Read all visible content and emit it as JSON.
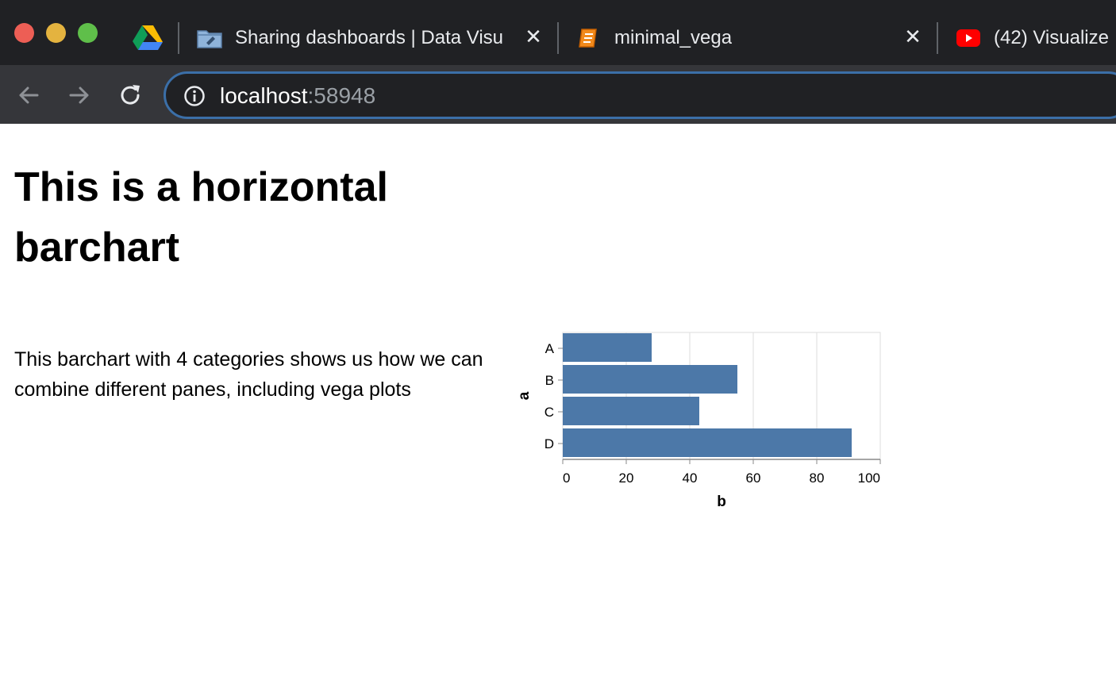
{
  "browser": {
    "tabs": [
      {
        "title": "Sharing dashboards | Data Visu",
        "icon": "folder-icon"
      },
      {
        "title": "minimal_vega",
        "icon": "notebook-icon"
      },
      {
        "title": "(42) Visualize",
        "icon": "youtube-icon"
      }
    ],
    "pinned_tab_icon": "google-drive-icon",
    "address": {
      "host": "localhost",
      "port": ":58948"
    },
    "colors": {
      "chrome_dark": "#202124",
      "toolbar": "#35363a",
      "omnibox_border": "#3b6fa8"
    }
  },
  "page": {
    "title": "This is a horizontal barchart",
    "description": "This barchart with 4 categories shows us how we can combine different panes, including vega plots"
  },
  "chart_data": {
    "type": "bar",
    "orientation": "horizontal",
    "categories": [
      "A",
      "B",
      "C",
      "D"
    ],
    "values": [
      28,
      55,
      43,
      91
    ],
    "xlabel": "b",
    "ylabel": "a",
    "xlim": [
      0,
      100
    ],
    "xticks": [
      0,
      20,
      40,
      60,
      80,
      100
    ],
    "grid": true,
    "bar_color": "#4c78a8"
  }
}
